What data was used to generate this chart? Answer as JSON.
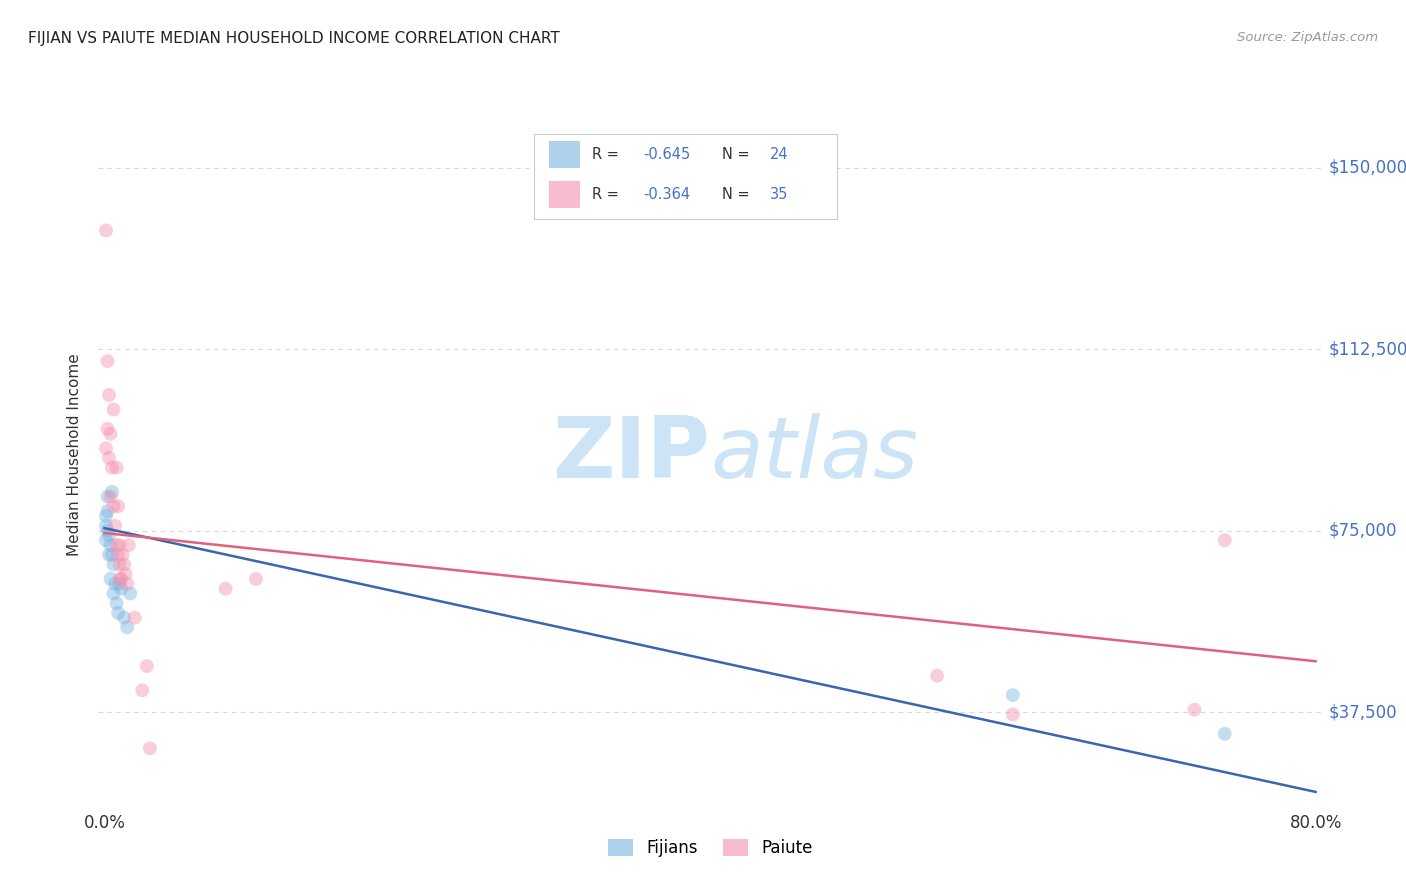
{
  "title": "FIJIAN VS PAIUTE MEDIAN HOUSEHOLD INCOME CORRELATION CHART",
  "source": "Source: ZipAtlas.com",
  "ylabel": "Median Household Income",
  "ytick_labels": [
    "$37,500",
    "$75,000",
    "$112,500",
    "$150,000"
  ],
  "ytick_values": [
    37500,
    75000,
    112500,
    150000
  ],
  "ymin": 18750,
  "ymax": 162500,
  "xmin": -0.004,
  "xmax": 0.804,
  "xtick_positions": [
    0.0,
    0.8
  ],
  "xtick_labels": [
    "0.0%",
    "80.0%"
  ],
  "legend_entries": [
    {
      "label_r": "R = -0.645",
      "label_n": "N = 24",
      "color": "#a8c8f0"
    },
    {
      "label_r": "R = -0.364",
      "label_n": "N = 35",
      "color": "#f4a8be"
    }
  ],
  "legend_bottom": [
    "Fijians",
    "Paiute"
  ],
  "fijian_color": "#7ab4e0",
  "paiute_color": "#f490b0",
  "fijian_line_color": "#3a65b0",
  "paiute_line_color": "#e06080",
  "watermark_zip": "ZIP",
  "watermark_atlas": "atlas",
  "watermark_color": "#cce4f5",
  "fijian_x": [
    0.001,
    0.001,
    0.001,
    0.002,
    0.002,
    0.002,
    0.003,
    0.003,
    0.004,
    0.004,
    0.005,
    0.005,
    0.006,
    0.006,
    0.007,
    0.008,
    0.009,
    0.01,
    0.011,
    0.013,
    0.015,
    0.017,
    0.6,
    0.74
  ],
  "fijian_y": [
    78000,
    76000,
    73000,
    82000,
    79000,
    75000,
    74000,
    70000,
    72000,
    65000,
    83000,
    70000,
    68000,
    62000,
    64000,
    60000,
    58000,
    64000,
    63000,
    57000,
    55000,
    62000,
    41000,
    33000
  ],
  "paiute_x": [
    0.001,
    0.001,
    0.002,
    0.002,
    0.003,
    0.003,
    0.004,
    0.004,
    0.005,
    0.006,
    0.006,
    0.007,
    0.008,
    0.008,
    0.009,
    0.009,
    0.01,
    0.01,
    0.01,
    0.011,
    0.012,
    0.013,
    0.014,
    0.015,
    0.016,
    0.02,
    0.025,
    0.028,
    0.03,
    0.08,
    0.1,
    0.55,
    0.6,
    0.72,
    0.74
  ],
  "paiute_y": [
    137000,
    92000,
    110000,
    96000,
    103000,
    90000,
    95000,
    82000,
    88000,
    100000,
    80000,
    76000,
    88000,
    72000,
    80000,
    70000,
    68000,
    72000,
    65000,
    65000,
    70000,
    68000,
    66000,
    64000,
    72000,
    57000,
    42000,
    47000,
    30000,
    63000,
    65000,
    45000,
    37000,
    38000,
    73000
  ],
  "fijian_line_x": [
    0.0,
    0.8
  ],
  "fijian_line_y": [
    75500,
    21000
  ],
  "paiute_line_x": [
    0.0,
    0.8
  ],
  "paiute_line_y": [
    74500,
    48000
  ],
  "background_color": "#ffffff",
  "grid_color": "#d8d8d8",
  "title_color": "#222222",
  "ytick_color": "#4472c4",
  "marker_size": 100,
  "marker_alpha": 0.45,
  "line_width": 1.8
}
